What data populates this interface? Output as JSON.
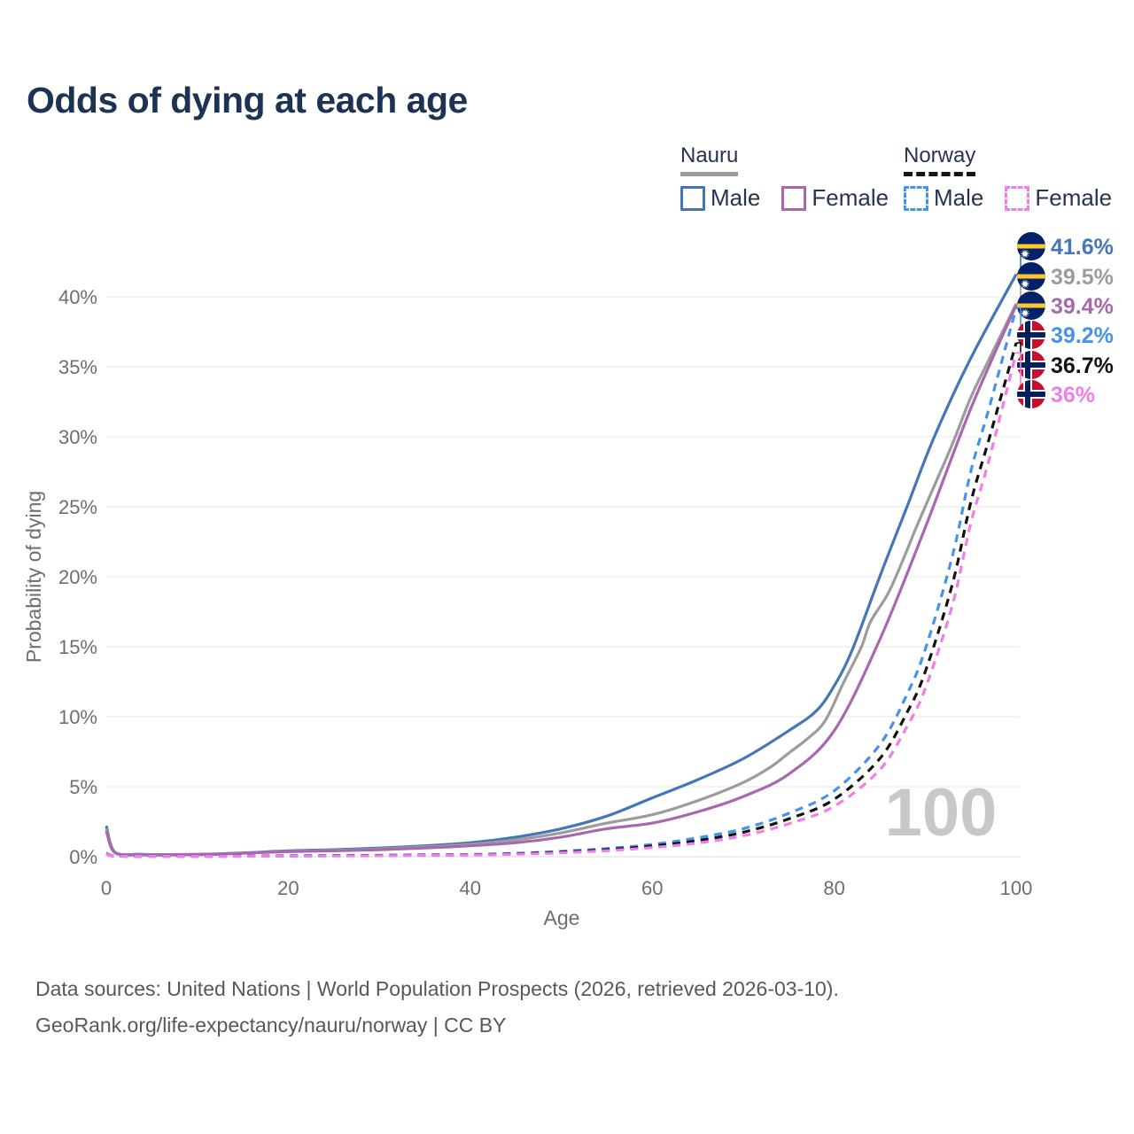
{
  "title": "Odds of dying at each age",
  "legend": {
    "groups": [
      {
        "name": "Nauru",
        "line_style": "solid",
        "underline_color": "#9c9c9c",
        "items": [
          {
            "label": "Male",
            "color": "#4576b8"
          },
          {
            "label": "Female",
            "color": "#a868ae"
          }
        ]
      },
      {
        "name": "Norway",
        "line_style": "dashed",
        "underline_color": "#151515",
        "items": [
          {
            "label": "Male",
            "color": "#4593ea"
          },
          {
            "label": "Female",
            "color": "#f17ceb"
          }
        ]
      }
    ]
  },
  "chart_data": {
    "type": "line",
    "title": "Odds of dying at each age",
    "xlabel": "Age",
    "ylabel": "Probability of dying",
    "xlim": [
      0,
      100
    ],
    "ylim": [
      0,
      43
    ],
    "grid": "horizontal",
    "legend_position": "top-right",
    "watermark": "100",
    "x_ticks": [
      0,
      20,
      40,
      60,
      80,
      100
    ],
    "x_tick_labels": [
      "0",
      "20",
      "40",
      "60",
      "80",
      "100"
    ],
    "y_ticks": [
      0,
      5,
      10,
      15,
      20,
      25,
      30,
      35,
      40
    ],
    "y_tick_labels": [
      "0%",
      "5%",
      "10%",
      "15%",
      "20%",
      "25%",
      "30%",
      "35%",
      "40%"
    ],
    "flags": {
      "nauru": {
        "bg": "#012169",
        "stripe": "#ffc72c",
        "star": "#ffffff"
      },
      "norway": {
        "bg": "#c8102e",
        "cross_outer": "#ffffff",
        "cross_inner": "#00205b"
      }
    },
    "series": [
      {
        "name": "Nauru Male",
        "country": "Nauru",
        "variant": "male",
        "line": "solid",
        "color": "#4576b8",
        "flag": "nauru",
        "end_label": "41.6%",
        "ages": [
          0,
          1,
          4,
          8,
          12,
          16,
          20,
          25,
          30,
          35,
          40,
          45,
          50,
          55,
          60,
          65,
          70,
          75,
          78,
          80,
          82,
          85,
          88,
          91,
          95,
          100
        ],
        "values": [
          2.2,
          0.3,
          0.17,
          0.16,
          0.2,
          0.3,
          0.42,
          0.5,
          0.62,
          0.78,
          1.0,
          1.4,
          2.0,
          2.9,
          4.2,
          5.5,
          7.0,
          9.0,
          10.4,
          12.2,
          14.8,
          20.0,
          25.0,
          30.0,
          35.6,
          41.6
        ]
      },
      {
        "name": "Nauru",
        "country": "Nauru",
        "variant": "all",
        "line": "solid",
        "color": "#9c9c9c",
        "flag": "nauru",
        "end_label": "39.5%",
        "ages": [
          0,
          1,
          4,
          8,
          12,
          16,
          20,
          25,
          30,
          35,
          40,
          45,
          50,
          55,
          60,
          65,
          70,
          73,
          75,
          77,
          79,
          81,
          83,
          84,
          86,
          88,
          89,
          91,
          93,
          95,
          97,
          100
        ],
        "values": [
          2.0,
          0.28,
          0.15,
          0.15,
          0.18,
          0.27,
          0.38,
          0.45,
          0.55,
          0.7,
          0.88,
          1.2,
          1.7,
          2.4,
          3.0,
          4.0,
          5.3,
          6.4,
          7.4,
          8.4,
          9.7,
          12.4,
          15.0,
          16.8,
          18.9,
          21.9,
          23.5,
          26.5,
          29.5,
          32.8,
          35.5,
          39.5
        ]
      },
      {
        "name": "Nauru Female",
        "country": "Nauru",
        "variant": "female",
        "line": "solid",
        "color": "#a868ae",
        "flag": "nauru",
        "end_label": "39.4%",
        "ages": [
          0,
          1,
          4,
          8,
          12,
          16,
          20,
          25,
          30,
          35,
          40,
          45,
          50,
          55,
          60,
          65,
          70,
          75,
          80,
          85,
          90,
          95,
          100
        ],
        "values": [
          1.85,
          0.26,
          0.13,
          0.13,
          0.17,
          0.28,
          0.36,
          0.42,
          0.5,
          0.62,
          0.78,
          1.0,
          1.4,
          2.0,
          2.4,
          3.2,
          4.3,
          5.9,
          9.0,
          15.5,
          23.5,
          32.0,
          39.4
        ]
      },
      {
        "name": "Norway Male",
        "country": "Norway",
        "variant": "male",
        "line": "dashed",
        "color": "#4593ea",
        "flag": "norway",
        "end_label": "39.2%",
        "ages": [
          0,
          1,
          5,
          10,
          15,
          20,
          25,
          30,
          35,
          40,
          45,
          50,
          55,
          60,
          65,
          70,
          75,
          80,
          85,
          88,
          90,
          93,
          95,
          97,
          100
        ],
        "values": [
          0.25,
          0.04,
          0.02,
          0.02,
          0.05,
          0.08,
          0.09,
          0.1,
          0.13,
          0.16,
          0.24,
          0.38,
          0.58,
          0.88,
          1.35,
          2.0,
          3.1,
          4.7,
          8.0,
          11.6,
          14.8,
          21.5,
          27.5,
          32.0,
          39.2
        ]
      },
      {
        "name": "Norway",
        "country": "Norway",
        "variant": "all",
        "line": "dashed",
        "color": "#121212",
        "flag": "norway",
        "end_label": "36.7%",
        "ages": [
          0,
          1,
          5,
          10,
          15,
          20,
          25,
          30,
          35,
          40,
          45,
          50,
          55,
          60,
          65,
          70,
          75,
          80,
          85,
          88,
          90,
          93,
          95,
          97,
          100
        ],
        "values": [
          0.22,
          0.035,
          0.018,
          0.018,
          0.04,
          0.06,
          0.07,
          0.09,
          0.11,
          0.14,
          0.2,
          0.33,
          0.5,
          0.76,
          1.15,
          1.75,
          2.7,
          4.1,
          7.0,
          10.3,
          13.2,
          19.5,
          25.3,
          29.8,
          36.7
        ]
      },
      {
        "name": "Norway Female",
        "country": "Norway",
        "variant": "female",
        "line": "dashed",
        "color": "#f17ceb",
        "flag": "norway",
        "end_label": "36%",
        "ages": [
          0,
          1,
          5,
          10,
          15,
          20,
          25,
          30,
          35,
          40,
          45,
          50,
          55,
          60,
          65,
          70,
          75,
          80,
          85,
          88,
          90,
          93,
          95,
          97,
          100
        ],
        "values": [
          0.2,
          0.03,
          0.015,
          0.015,
          0.03,
          0.05,
          0.055,
          0.07,
          0.09,
          0.12,
          0.17,
          0.28,
          0.43,
          0.65,
          0.98,
          1.5,
          2.35,
          3.6,
          6.2,
          9.3,
          12.0,
          18.0,
          23.8,
          28.3,
          36.0
        ]
      }
    ]
  },
  "footer": {
    "line1": "Data sources: United Nations | World Population Prospects (2026, retrieved 2026-03-10).",
    "line2": "GeoRank.org/life-expectancy/nauru/norway | CC BY"
  }
}
